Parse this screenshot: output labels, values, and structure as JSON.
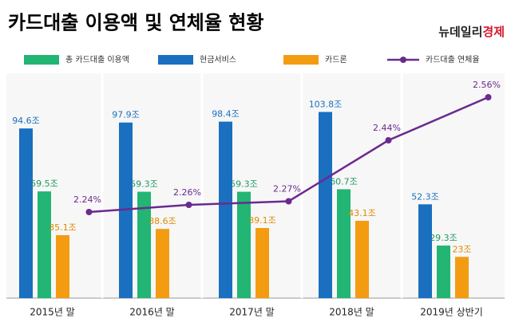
{
  "brand_name": "뉴데일리",
  "brand_accent": "경제",
  "chart_data": {
    "type": "bar",
    "title": "카드대출 이용액 및 연체율 현황",
    "categories": [
      "2015년 말",
      "2016년 말",
      "2017년 말",
      "2018년 말",
      "2019년 상반기"
    ],
    "ylim": [
      0,
      120
    ],
    "y2lim": [
      2,
      2.6
    ],
    "series": [
      {
        "name": "총 카드대출 이용액",
        "color": "#22b573",
        "values": [
          59.5,
          59.3,
          59.3,
          60.7,
          29.3
        ],
        "value_labels": [
          "59.5조",
          "59.3조",
          "59.3조",
          "60.7조",
          "29.3조"
        ]
      },
      {
        "name": "현금서비스",
        "color": "#1a6fbf",
        "values": [
          94.6,
          97.9,
          98.4,
          103.8,
          52.3
        ],
        "value_labels": [
          "94.6조",
          "97.9조",
          "98.4조",
          "103.8조",
          "52.3조"
        ]
      },
      {
        "name": "카드론",
        "color": "#f39c12",
        "values": [
          35.1,
          38.6,
          39.1,
          43.1,
          23
        ],
        "value_labels": [
          "35.1조",
          "38.6조",
          "39.1조",
          "43.1조",
          "23조"
        ]
      },
      {
        "name": "카드대출 연체율",
        "color": "#6a2a8f",
        "type": "line",
        "axis": "y2",
        "values": [
          2.24,
          2.26,
          2.27,
          2.44,
          2.56
        ],
        "value_labels": [
          "2.24%",
          "2.26%",
          "2.27%",
          "2.44%",
          "2.56%"
        ]
      }
    ]
  }
}
